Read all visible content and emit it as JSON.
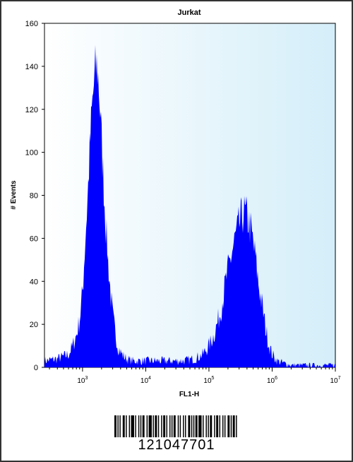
{
  "chart_data": {
    "type": "area",
    "title": "Jurkat",
    "xlabel": "FL1-H",
    "ylabel": "# Events",
    "x_scale": "log",
    "xlim": [
      250,
      10000000
    ],
    "ylim": [
      0,
      160
    ],
    "y_ticks": [
      0,
      20,
      40,
      60,
      80,
      100,
      120,
      140,
      160
    ],
    "x_ticks": [
      {
        "value": 1000,
        "base": "10",
        "exp": "3"
      },
      {
        "value": 10000,
        "base": "10",
        "exp": "4"
      },
      {
        "value": 100000,
        "base": "10",
        "exp": "5"
      },
      {
        "value": 1000000,
        "base": "10",
        "exp": "6"
      },
      {
        "value": 10000000,
        "base": "10",
        "exp": "7"
      }
    ],
    "fill_color": "#0000ff",
    "plot_background": [
      "#ffffff",
      "#d4eef9"
    ],
    "grid": false,
    "series": [
      {
        "x": [
          250,
          400,
          600,
          700,
          800,
          900,
          1000,
          1100,
          1200,
          1300,
          1400,
          1500,
          1600,
          1700,
          1800,
          1900,
          2000,
          2200,
          2400,
          2600,
          2800,
          3000,
          3300,
          3600,
          4000,
          4500,
          5000,
          6000,
          8000,
          10000,
          20000,
          40000,
          60000,
          80000,
          100000,
          120000,
          150000,
          180000,
          200000,
          230000,
          260000,
          300000,
          330000,
          360000,
          400000,
          450000,
          500000,
          550000,
          600000,
          700000,
          800000,
          900000,
          1000000,
          1200000,
          1500000,
          2000000,
          3000000,
          5000000,
          10000000
        ],
        "y": [
          3,
          4,
          6,
          10,
          15,
          22,
          35,
          58,
          78,
          100,
          118,
          130,
          138,
          140,
          132,
          120,
          105,
          80,
          60,
          45,
          33,
          24,
          16,
          10,
          7,
          5,
          4,
          3,
          3,
          3,
          3,
          3,
          4,
          6,
          10,
          15,
          25,
          38,
          45,
          53,
          60,
          66,
          70,
          72,
          70,
          65,
          58,
          50,
          40,
          28,
          17,
          10,
          6,
          3,
          2,
          1,
          1,
          1,
          1
        ]
      }
    ]
  },
  "barcode": {
    "number": "121047701",
    "bars": [
      2,
      1,
      1,
      1,
      1,
      2,
      2,
      1,
      1,
      2,
      1,
      1,
      3,
      1,
      1,
      2,
      1,
      1,
      1,
      1,
      2,
      2,
      1,
      1,
      3,
      1,
      1,
      1,
      2,
      1,
      1,
      2,
      1,
      1,
      2,
      1,
      1,
      2,
      1,
      1,
      1,
      1,
      2,
      2,
      1,
      1,
      1,
      2,
      1,
      1,
      1,
      2,
      2,
      1,
      1,
      1,
      1,
      1,
      2,
      1,
      3,
      1,
      1,
      2,
      1,
      1,
      1,
      1,
      2,
      2,
      1,
      1,
      2,
      1,
      1,
      2,
      1,
      1,
      1,
      2,
      2,
      1,
      1,
      1,
      2,
      1,
      1,
      3
    ]
  }
}
